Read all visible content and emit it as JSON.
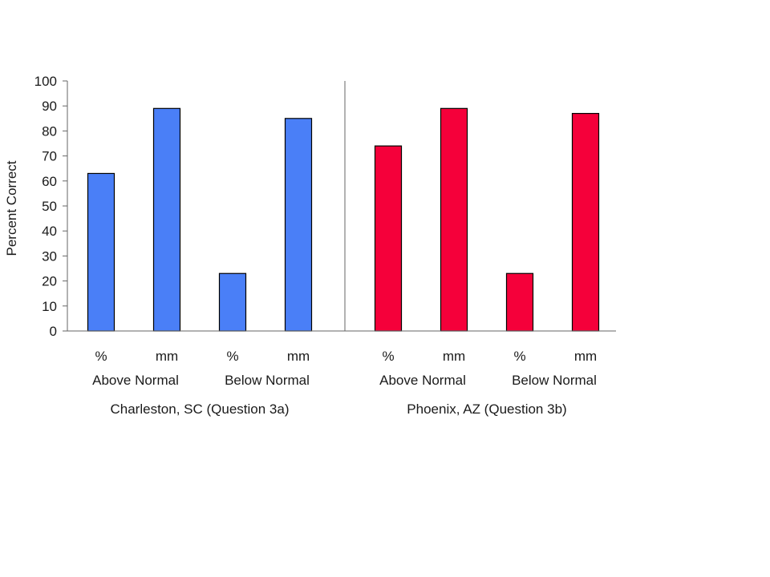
{
  "chart_data": {
    "type": "bar",
    "title": "",
    "xlabel": "",
    "ylabel": "Percent Correct",
    "ylim": [
      0,
      100
    ],
    "yticks": [
      0,
      10,
      20,
      30,
      40,
      50,
      60,
      70,
      80,
      90,
      100
    ],
    "grid": false,
    "legend": "none",
    "groups": [
      {
        "label": "Charleston, SC (Question 3a)",
        "color": "#4a7ff7",
        "bars": [
          {
            "unit": "%",
            "sub": "Above Normal",
            "value": 63
          },
          {
            "unit": "mm",
            "sub": "Above Normal",
            "value": 89
          },
          {
            "unit": "%",
            "sub": "Below Normal",
            "value": 23
          },
          {
            "unit": "mm",
            "sub": "Below Normal",
            "value": 85
          }
        ],
        "sublabels": [
          "Above Normal",
          "Below Normal"
        ]
      },
      {
        "label": "Phoenix, AZ (Question 3b)",
        "color": "#f5003a",
        "bars": [
          {
            "unit": "%",
            "sub": "Above Normal",
            "value": 74
          },
          {
            "unit": "mm",
            "sub": "Above Normal",
            "value": 89
          },
          {
            "unit": "%",
            "sub": "Below Normal",
            "value": 23
          },
          {
            "unit": "mm",
            "sub": "Below Normal",
            "value": 87
          }
        ],
        "sublabels": [
          "Above Normal",
          "Below Normal"
        ]
      }
    ]
  }
}
